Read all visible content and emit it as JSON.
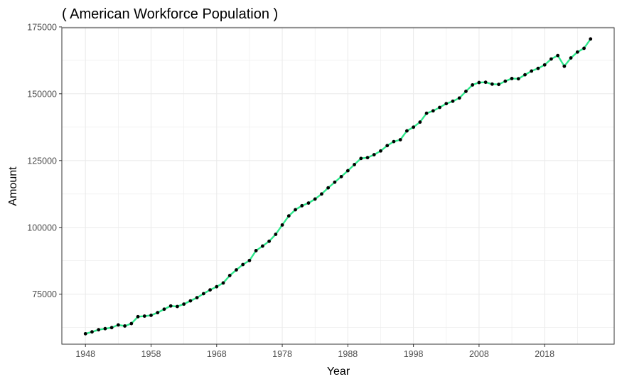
{
  "chart_data": {
    "type": "line",
    "title": "( American Workforce Population )",
    "xlabel": "Year",
    "ylabel": "Amount",
    "xlim": [
      1944.4,
      2028.6
    ],
    "ylim": [
      56300,
      174700
    ],
    "xticks": [
      1948,
      1958,
      1968,
      1978,
      1988,
      1998,
      2008,
      2018
    ],
    "yticks": [
      75000,
      100000,
      125000,
      150000,
      175000
    ],
    "grid": true,
    "legend": "none",
    "colors": {
      "line": "#2ee88c",
      "points": "#000000",
      "grid": "#ebebeb",
      "border": "#333333"
    },
    "x": [
      1948,
      1949,
      1950,
      1951,
      1952,
      1953,
      1954,
      1955,
      1956,
      1957,
      1958,
      1959,
      1960,
      1961,
      1962,
      1963,
      1964,
      1965,
      1966,
      1967,
      1968,
      1969,
      1970,
      1971,
      1972,
      1973,
      1974,
      1975,
      1976,
      1977,
      1978,
      1979,
      1980,
      1981,
      1982,
      1983,
      1984,
      1985,
      1986,
      1987,
      1988,
      1989,
      1990,
      1991,
      1992,
      1993,
      1994,
      1995,
      1996,
      1997,
      1998,
      1999,
      2000,
      2001,
      2002,
      2003,
      2004,
      2005,
      2006,
      2007,
      2008,
      2009,
      2010,
      2011,
      2012,
      2013,
      2014,
      2015,
      2016,
      2017,
      2018,
      2019,
      2020,
      2021,
      2022,
      2023,
      2024,
      2025
    ],
    "y": [
      60200,
      60900,
      61700,
      62100,
      62500,
      63500,
      63100,
      64000,
      66600,
      66800,
      67100,
      68100,
      69400,
      70600,
      70400,
      71300,
      72500,
      73700,
      75200,
      76600,
      77800,
      79200,
      82000,
      84100,
      86100,
      87600,
      91300,
      93000,
      94800,
      97400,
      100900,
      104300,
      106600,
      108100,
      109100,
      110600,
      112500,
      114800,
      116900,
      119000,
      121200,
      123500,
      125800,
      126100,
      127200,
      128600,
      130600,
      132100,
      132800,
      136100,
      137500,
      139400,
      142700,
      143600,
      144900,
      146300,
      147200,
      148400,
      150900,
      153300,
      154200,
      154300,
      153600,
      153500,
      154700,
      155700,
      155600,
      157100,
      158500,
      159500,
      160800,
      163000,
      164300,
      160300,
      163400,
      165600,
      167000,
      170500
    ]
  }
}
